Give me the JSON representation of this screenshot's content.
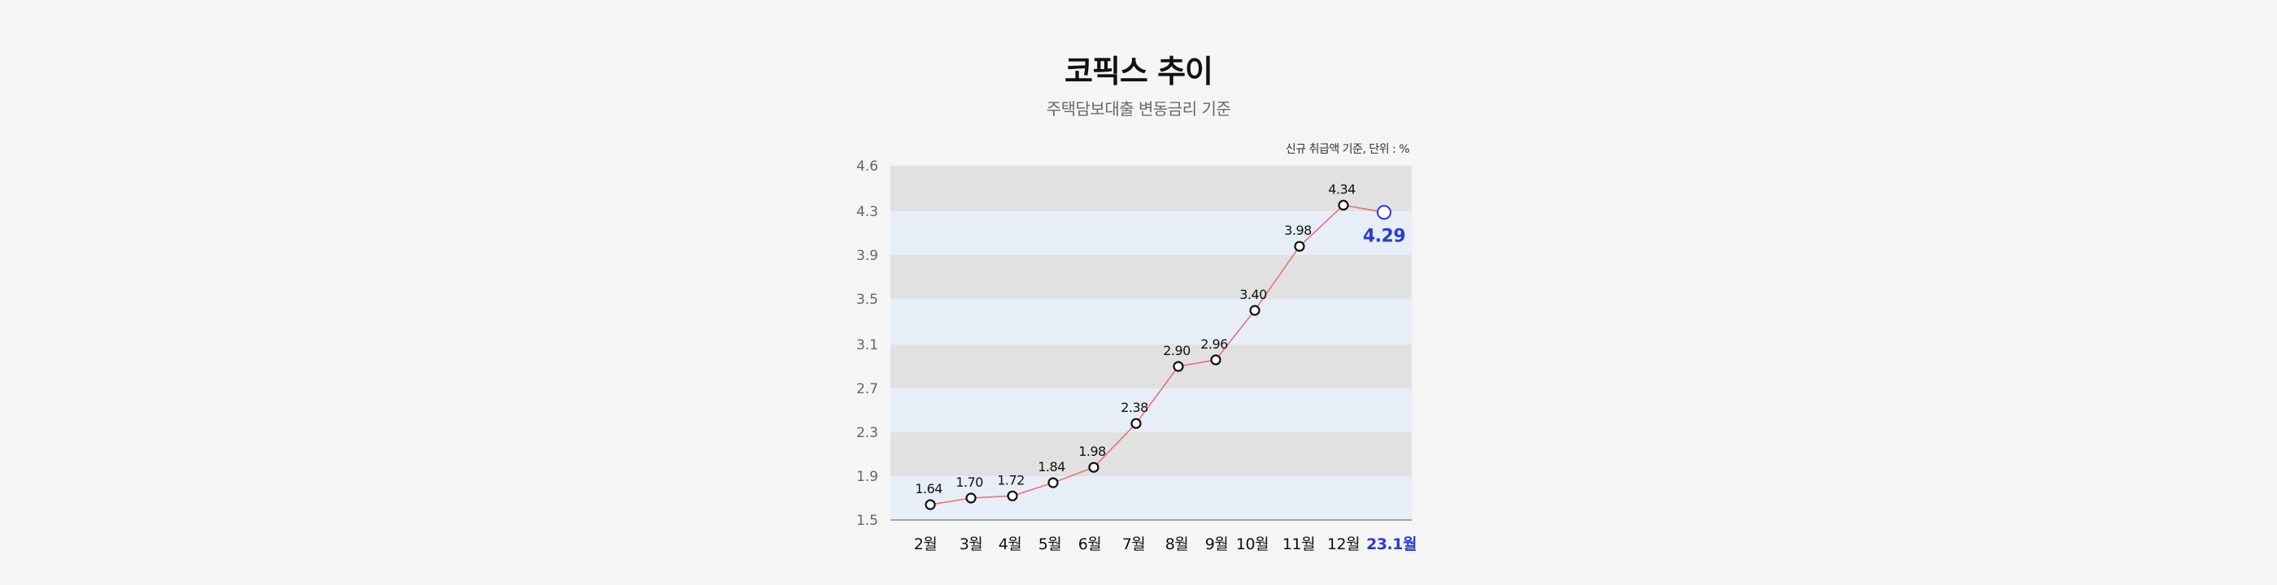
{
  "title": "코픽스 추이",
  "subtitle": "주택담보대출 변동금리 기준",
  "note": "신규 취급액 기준, 단위 : %",
  "chart_data": {
    "type": "line",
    "title": "코픽스 추이",
    "subtitle": "주택담보대출 변동금리 기준",
    "categories": [
      "2월",
      "3월",
      "4월",
      "5월",
      "6월",
      "7월",
      "8월",
      "9월",
      "10월",
      "11월",
      "12월",
      "23.1월"
    ],
    "values": [
      1.64,
      1.7,
      1.72,
      1.84,
      1.98,
      2.38,
      2.9,
      2.96,
      3.4,
      3.98,
      4.34,
      4.29
    ],
    "value_labels": [
      "1.64",
      "1.70",
      "1.72",
      "1.84",
      "1.98",
      "2.38",
      "2.90",
      "2.96",
      "3.40",
      "3.98",
      "4.34",
      "4.29"
    ],
    "y_ticks": [
      1.5,
      1.9,
      2.3,
      2.7,
      3.1,
      3.5,
      3.9,
      4.3,
      4.6
    ],
    "y_tick_labels": [
      "1.5",
      "1.9",
      "2.3",
      "2.7",
      "3.1",
      "3.5",
      "3.9",
      "4.3",
      "4.6"
    ],
    "ylim": [
      1.5,
      4.6
    ],
    "highlight_index": 11,
    "colors": {
      "line": "#e57373",
      "highlight": "#2a3bd4",
      "band_gray": "#e1e1e1",
      "band_blue": "#e8eef8",
      "point_fill": "#ffffff",
      "point_stroke": "#111111"
    },
    "grid": "alternating horizontal bands",
    "legend": "none"
  }
}
